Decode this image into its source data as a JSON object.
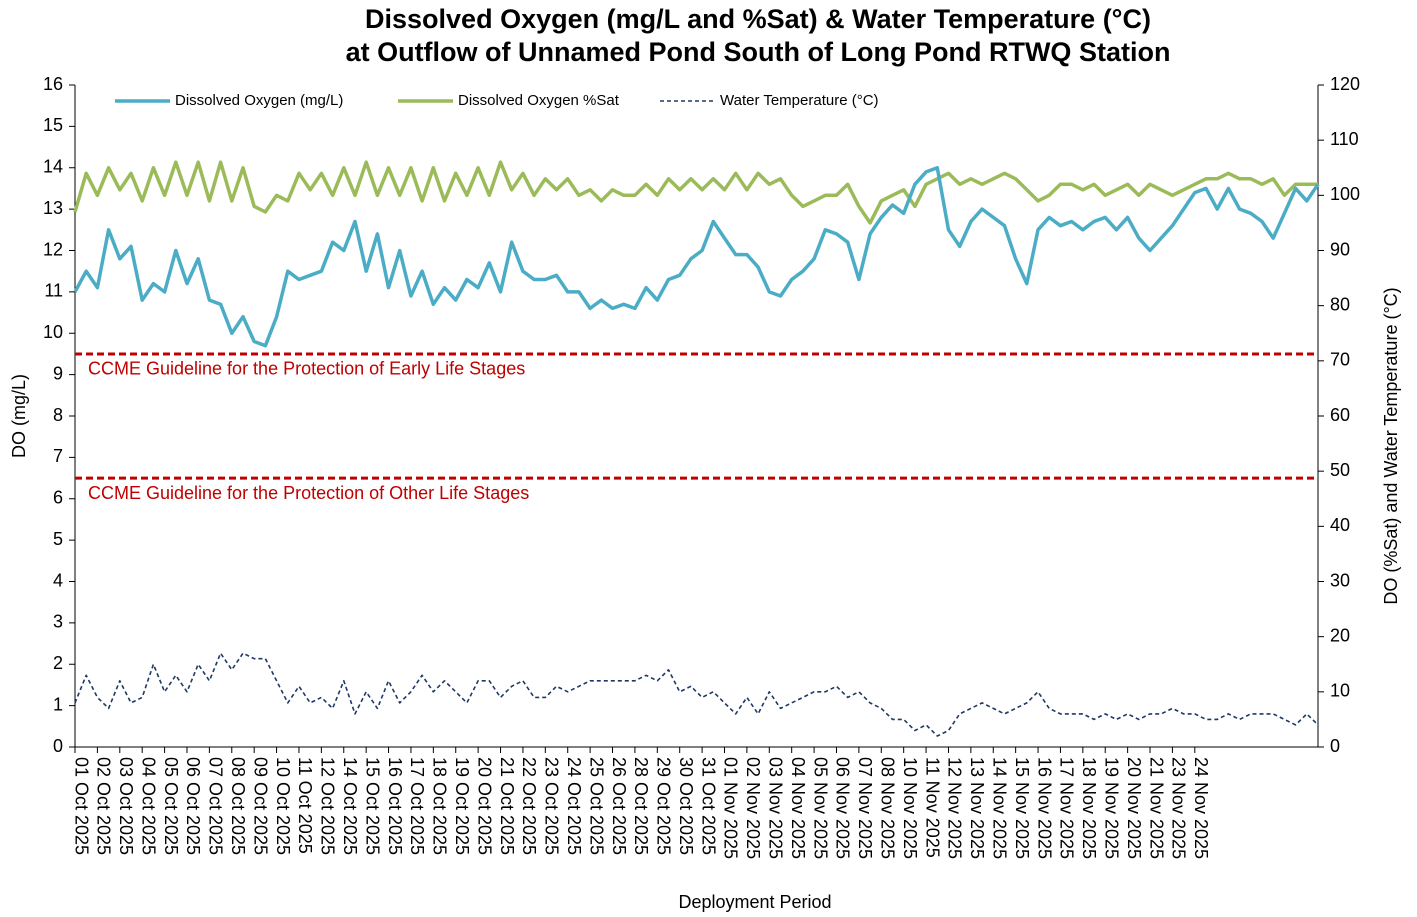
{
  "chart_data": {
    "type": "line",
    "title": "Dissolved Oxygen (mg/L and %Sat) & Water Temperature (°C)",
    "subtitle": "at Outflow of Unnamed Pond South of Long Pond RTWQ Station",
    "x_label": "Deployment Period",
    "y_label": "DO (mg/L)",
    "y2_label": "DO (%Sat) and Water Temperature (°C)",
    "legend": "top-left",
    "ylim": [
      0,
      16
    ],
    "yticks": [
      0,
      1,
      2,
      3,
      4,
      5,
      6,
      7,
      8,
      9,
      10,
      11,
      12,
      13,
      14,
      15,
      16
    ],
    "y2lim": [
      0,
      120
    ],
    "y2ticks": [
      0,
      10,
      20,
      30,
      40,
      50,
      60,
      70,
      80,
      90,
      100,
      110,
      120
    ],
    "xlim": [
      0,
      55.5
    ],
    "xticks": [
      {
        "value": 0,
        "label": "01 Oct 2025"
      },
      {
        "value": 1,
        "label": "02 Oct 2025"
      },
      {
        "value": 2,
        "label": "03 Oct 2025"
      },
      {
        "value": 3,
        "label": "04 Oct 2025"
      },
      {
        "value": 4,
        "label": "05 Oct 2025"
      },
      {
        "value": 5,
        "label": "06 Oct 2025"
      },
      {
        "value": 6,
        "label": "07 Oct 2025"
      },
      {
        "value": 7,
        "label": "08 Oct 2025"
      },
      {
        "value": 8,
        "label": "09 Oct 2025"
      },
      {
        "value": 9,
        "label": "10 Oct 2025"
      },
      {
        "value": 10,
        "label": "11 Oct 2025"
      },
      {
        "value": 11,
        "label": "12 Oct 2025"
      },
      {
        "value": 12,
        "label": "14 Oct 2025"
      },
      {
        "value": 13,
        "label": "15 Oct 2025"
      },
      {
        "value": 14,
        "label": "16 Oct 2025"
      },
      {
        "value": 15,
        "label": "17 Oct 2025"
      },
      {
        "value": 16,
        "label": "18 Oct 2025"
      },
      {
        "value": 17,
        "label": "19 Oct 2025"
      },
      {
        "value": 18,
        "label": "20 Oct 2025"
      },
      {
        "value": 19,
        "label": "21 Oct 2025"
      },
      {
        "value": 20,
        "label": "22 Oct 2025"
      },
      {
        "value": 21,
        "label": "23 Oct 2025"
      },
      {
        "value": 22,
        "label": "24 Oct 2025"
      },
      {
        "value": 23,
        "label": "25 Oct 2025"
      },
      {
        "value": 24,
        "label": "26 Oct 2025"
      },
      {
        "value": 25,
        "label": "28 Oct 2025"
      },
      {
        "value": 26,
        "label": "29 Oct 2025"
      },
      {
        "value": 27,
        "label": "30 Oct 2025"
      },
      {
        "value": 28,
        "label": "31 Oct 2025"
      },
      {
        "value": 29,
        "label": "01 Nov 2025"
      },
      {
        "value": 30,
        "label": "02 Nov 2025"
      },
      {
        "value": 31,
        "label": "03 Nov 2025"
      },
      {
        "value": 32,
        "label": "04 Nov 2025"
      },
      {
        "value": 33,
        "label": "05 Nov 2025"
      },
      {
        "value": 34,
        "label": "06 Nov 2025"
      },
      {
        "value": 35,
        "label": "07 Nov 2025"
      },
      {
        "value": 36,
        "label": "08 Nov 2025"
      },
      {
        "value": 37,
        "label": "10 Nov 2025"
      },
      {
        "value": 38,
        "label": "11 Nov 2025"
      },
      {
        "value": 39,
        "label": "12 Nov 2025"
      },
      {
        "value": 40,
        "label": "13 Nov 2025"
      },
      {
        "value": 41,
        "label": "14 Nov 2025"
      },
      {
        "value": 42,
        "label": "15 Nov 2025"
      },
      {
        "value": 43,
        "label": "16 Nov 2025"
      },
      {
        "value": 44,
        "label": "17 Nov 2025"
      },
      {
        "value": 45,
        "label": "18 Nov 2025"
      },
      {
        "value": 46,
        "label": "19 Nov 2025"
      },
      {
        "value": 47,
        "label": "20 Nov 2025"
      },
      {
        "value": 48,
        "label": "21 Nov 2025"
      },
      {
        "value": 49,
        "label": "23 Nov 2025"
      },
      {
        "value": 50,
        "label": "24 Nov 2025"
      }
    ],
    "x": [
      0,
      0.5,
      1,
      1.5,
      2,
      2.5,
      3,
      3.5,
      4,
      4.5,
      5,
      5.5,
      6,
      6.5,
      7,
      7.5,
      8,
      8.5,
      9,
      9.5,
      10,
      10.5,
      11,
      11.5,
      12,
      12.5,
      13,
      13.5,
      14,
      14.5,
      15,
      15.5,
      16,
      16.5,
      17,
      17.5,
      18,
      18.5,
      19,
      19.5,
      20,
      20.5,
      21,
      21.5,
      22,
      22.5,
      23,
      23.5,
      24,
      24.5,
      25,
      25.5,
      26,
      26.5,
      27,
      27.5,
      28,
      28.5,
      29,
      29.5,
      30,
      30.5,
      31,
      31.5,
      32,
      32.5,
      33,
      33.5,
      34,
      34.5,
      35,
      35.5,
      36,
      36.5,
      37,
      37.5,
      38,
      38.5,
      39,
      39.5,
      40,
      40.5,
      41,
      41.5,
      42,
      42.5,
      43,
      43.5,
      44,
      44.5,
      45,
      45.5,
      46,
      46.5,
      47,
      47.5,
      48,
      48.5,
      49,
      49.5,
      50,
      50.5,
      51,
      51.5,
      52,
      52.5,
      53,
      53.5,
      54,
      54.5,
      55,
      55.5
    ],
    "guidelines": [
      {
        "value": 9.5,
        "label": "CCME Guideline for the Protection of Early Life Stages",
        "color": "#c00000"
      },
      {
        "value": 6.5,
        "label": "CCME Guideline for the Protection of Other Life Stages",
        "color": "#c00000"
      }
    ],
    "series": [
      {
        "name": "Dissolved Oxygen (mg/L)",
        "color": "#4bacc6",
        "dash": false,
        "axis": "y",
        "values": [
          11.0,
          11.5,
          11.1,
          12.5,
          11.8,
          12.1,
          10.8,
          11.2,
          11.0,
          12.0,
          11.2,
          11.8,
          10.8,
          10.7,
          10.0,
          10.4,
          9.8,
          9.7,
          10.4,
          11.5,
          11.3,
          11.4,
          11.5,
          12.2,
          12.0,
          12.7,
          11.5,
          12.4,
          11.1,
          12.0,
          10.9,
          11.5,
          10.7,
          11.1,
          10.8,
          11.3,
          11.1,
          11.7,
          11.0,
          12.2,
          11.5,
          11.3,
          11.3,
          11.4,
          11.0,
          11.0,
          10.6,
          10.8,
          10.6,
          10.7,
          10.6,
          11.1,
          10.8,
          11.3,
          11.4,
          11.8,
          12.0,
          12.7,
          12.3,
          11.9,
          11.9,
          11.6,
          11.0,
          10.9,
          11.3,
          11.5,
          11.8,
          12.5,
          12.4,
          12.2,
          11.3,
          12.4,
          12.8,
          13.1,
          12.9,
          13.6,
          13.9,
          14.0,
          12.5,
          12.1,
          12.7,
          13.0,
          12.8,
          12.6,
          11.8,
          11.2,
          12.5,
          12.8,
          12.6,
          12.7,
          12.5,
          12.7,
          12.8,
          12.5,
          12.8,
          12.3,
          12.0,
          12.3,
          12.6,
          13.0,
          13.4,
          13.5,
          13.0,
          13.5,
          13.0,
          12.9,
          12.7,
          12.3,
          12.9,
          13.5,
          13.2,
          13.6
        ]
      },
      {
        "name": "Dissolved Oxygen %Sat",
        "color": "#9bbb59",
        "dash": false,
        "axis": "y2",
        "values": [
          97,
          104,
          100,
          105,
          101,
          104,
          99,
          105,
          100,
          106,
          100,
          106,
          99,
          106,
          99,
          105,
          98,
          97,
          100,
          99,
          104,
          101,
          104,
          100,
          105,
          100,
          106,
          100,
          105,
          100,
          105,
          99,
          105,
          99,
          104,
          100,
          105,
          100,
          106,
          101,
          104,
          100,
          103,
          101,
          103,
          100,
          101,
          99,
          101,
          100,
          100,
          102,
          100,
          103,
          101,
          103,
          101,
          103,
          101,
          104,
          101,
          104,
          102,
          103,
          100,
          98,
          99,
          100,
          100,
          102,
          98,
          95,
          99,
          100,
          101,
          98,
          102,
          103,
          104,
          102,
          103,
          102,
          103,
          104,
          103,
          101,
          99,
          100,
          102,
          102,
          101,
          102,
          100,
          101,
          102,
          100,
          102,
          101,
          100,
          101,
          102,
          103,
          103,
          104,
          103,
          103,
          102,
          103,
          100,
          102,
          102,
          102
        ]
      },
      {
        "name": "Water Temperature (°C)",
        "color": "#1f3864",
        "dash": true,
        "axis": "y2",
        "values": [
          8,
          13,
          9,
          7,
          12,
          8,
          9,
          15,
          10,
          13,
          10,
          15,
          12,
          17,
          14,
          17,
          16,
          16,
          12,
          8,
          11,
          8,
          9,
          7,
          12,
          6,
          10,
          7,
          12,
          8,
          10,
          13,
          10,
          12,
          10,
          8,
          12,
          12,
          9,
          11,
          12,
          9,
          9,
          11,
          10,
          11,
          12,
          12,
          12,
          12,
          12,
          13,
          12,
          14,
          10,
          11,
          9,
          10,
          8,
          6,
          9,
          6,
          10,
          7,
          8,
          9,
          10,
          10,
          11,
          9,
          10,
          8,
          7,
          5,
          5,
          3,
          4,
          2,
          3,
          6,
          7,
          8,
          7,
          6,
          7,
          8,
          10,
          7,
          6,
          6,
          6,
          5,
          6,
          5,
          6,
          5,
          6,
          6,
          7,
          6,
          6,
          5,
          5,
          6,
          5,
          6,
          6,
          6,
          5,
          4,
          6,
          4
        ]
      }
    ]
  }
}
